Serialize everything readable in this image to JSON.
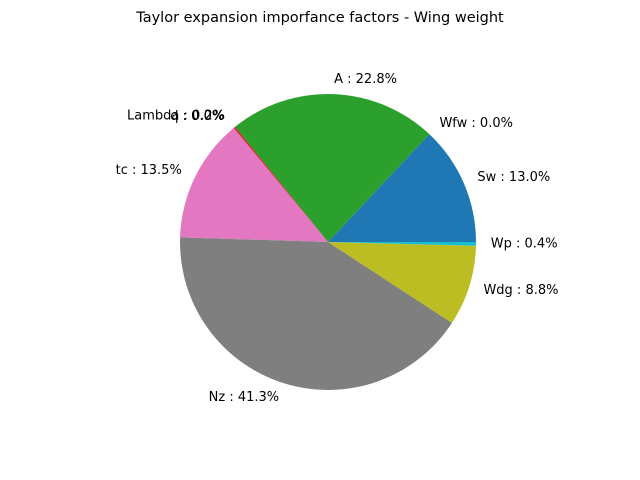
{
  "chart_data": {
    "type": "pie",
    "title": "Taylor expansion imporfance factors - Wing weight",
    "start_angle_deg": 0,
    "direction": "counterclockwise",
    "slices": [
      {
        "name": "Sw",
        "value": 13.0,
        "label": "Sw : 13.0%",
        "color": "#1f77b4"
      },
      {
        "name": "Wfw",
        "value": 0.0,
        "label": "Wfw : 0.0%",
        "color": "#ff7f0e"
      },
      {
        "name": "A",
        "value": 22.8,
        "label": "A : 22.8%",
        "color": "#2ca02c"
      },
      {
        "name": "Lambda",
        "value": 0.2,
        "label": "Lambda : 0.2%",
        "color": "#d62728"
      },
      {
        "name": "q",
        "value": 0.0,
        "label": "q : 0.0%",
        "color": "#9467bd"
      },
      {
        "name": "l",
        "value": 0.0,
        "label": "l : 0.0%",
        "color": "#8c564b"
      },
      {
        "name": "tc",
        "value": 13.5,
        "label": "tc : 13.5%",
        "color": "#e377c2"
      },
      {
        "name": "Nz",
        "value": 41.3,
        "label": "Nz : 41.3%",
        "color": "#7f7f7f"
      },
      {
        "name": "Wdg",
        "value": 8.8,
        "label": "Wdg : 8.8%",
        "color": "#bcbd22"
      },
      {
        "name": "Wp",
        "value": 0.4,
        "label": "Wp : 0.4%",
        "color": "#17becf"
      }
    ]
  }
}
